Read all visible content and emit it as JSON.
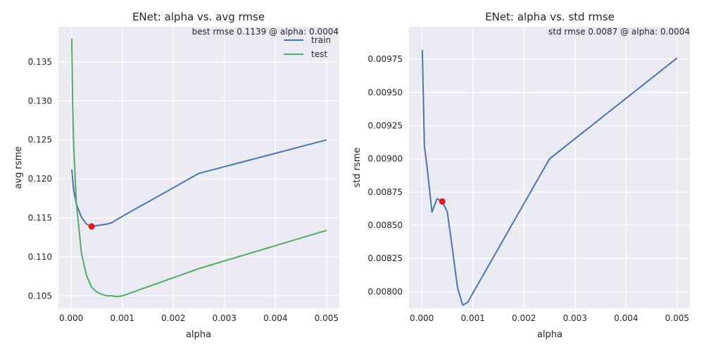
{
  "chart_data": [
    {
      "type": "line",
      "title": "ENet: alpha vs. avg rmse",
      "xlabel": "alpha",
      "ylabel": "avg rsme",
      "xlim": [
        -0.00025,
        0.00525
      ],
      "ylim": [
        0.1034,
        0.1395
      ],
      "xticks": [
        0.0,
        0.001,
        0.002,
        0.003,
        0.004,
        0.005
      ],
      "xtick_labels": [
        "0.000",
        "0.001",
        "0.002",
        "0.003",
        "0.004",
        "0.005"
      ],
      "yticks": [
        0.105,
        0.11,
        0.115,
        0.12,
        0.125,
        0.13,
        0.135
      ],
      "ytick_labels": [
        "0.105",
        "0.110",
        "0.115",
        "0.120",
        "0.125",
        "0.130",
        "0.135"
      ],
      "annotation": "best rmse 0.1139 @ alpha: 0.0004",
      "legend": "top-right",
      "grid": true,
      "series": [
        {
          "name": "train",
          "color": "#4c72b0",
          "x": [
            1e-05,
            5e-05,
            0.0001,
            0.0002,
            0.0003,
            0.0004,
            0.0005,
            0.0006,
            0.0007,
            0.0008,
            0.0009,
            0.001,
            0.0025,
            0.005
          ],
          "y": [
            0.1212,
            0.1185,
            0.1168,
            0.1151,
            0.1142,
            0.1139,
            0.114,
            0.1141,
            0.1142,
            0.1144,
            0.1148,
            0.1152,
            0.1207,
            0.125
          ]
        },
        {
          "name": "test",
          "color": "#55a868",
          "x": [
            1e-05,
            3e-05,
            5e-05,
            0.0001,
            0.0002,
            0.0003,
            0.0004,
            0.0005,
            0.0006,
            0.0007,
            0.0008,
            0.0009,
            0.001,
            0.0025,
            0.005
          ],
          "y": [
            0.138,
            0.129,
            0.124,
            0.117,
            0.1105,
            0.1076,
            0.1061,
            0.1055,
            0.1052,
            0.105,
            0.105,
            0.1049,
            0.105,
            0.1085,
            0.1134
          ]
        }
      ],
      "highlight_point": {
        "x": 0.0004,
        "y": 0.1139,
        "color": "#e41a1c"
      }
    },
    {
      "type": "line",
      "title": "ENet: alpha vs. std rmse",
      "xlabel": "alpha",
      "ylabel": "std rsme",
      "xlim": [
        -0.00025,
        0.00525
      ],
      "ylim": [
        0.007875,
        0.009995
      ],
      "xticks": [
        0.0,
        0.001,
        0.002,
        0.003,
        0.004,
        0.005
      ],
      "xtick_labels": [
        "0.000",
        "0.001",
        "0.002",
        "0.003",
        "0.004",
        "0.005"
      ],
      "yticks": [
        0.008,
        0.00825,
        0.0085,
        0.00875,
        0.009,
        0.00925,
        0.0095,
        0.00975
      ],
      "ytick_labels": [
        "0.00800",
        "0.00825",
        "0.00850",
        "0.00875",
        "0.00900",
        "0.00925",
        "0.00950",
        "0.00975"
      ],
      "annotation": "std rmse 0.0087 @ alpha: 0.0004",
      "grid": true,
      "series": [
        {
          "color": "#4c72b0",
          "x": [
            1e-05,
            5e-05,
            0.0001,
            0.0002,
            0.0003,
            0.0004,
            0.0005,
            0.0006,
            0.0007,
            0.0008,
            0.0009,
            0.001,
            0.0025,
            0.005
          ],
          "y": [
            0.00982,
            0.0091,
            0.00895,
            0.0086,
            0.0087,
            0.00868,
            0.0086,
            0.00832,
            0.00803,
            0.0079,
            0.00792,
            0.00799,
            0.009,
            0.00976
          ]
        }
      ],
      "highlight_point": {
        "x": 0.0004,
        "y": 0.00868,
        "color": "#e41a1c"
      }
    }
  ]
}
